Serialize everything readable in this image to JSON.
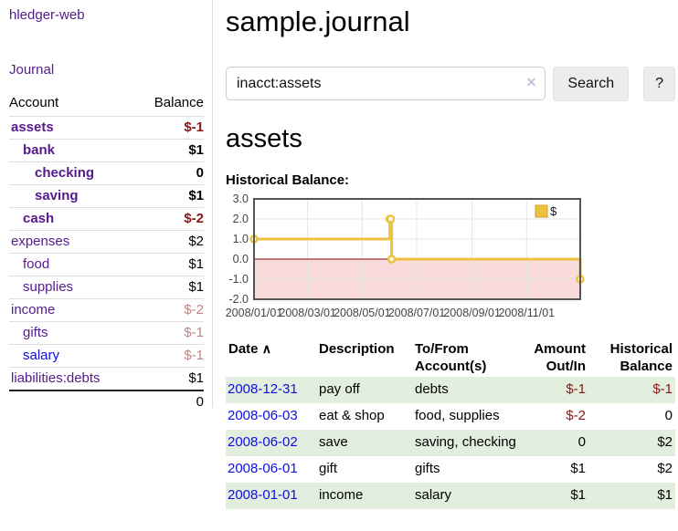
{
  "app": {
    "brand": "hledger-web"
  },
  "sidebar": {
    "nav_journal": "Journal",
    "table_headers": {
      "account": "Account",
      "balance": "Balance"
    },
    "accounts": [
      {
        "account": "assets",
        "balance": "$-1",
        "level": 1,
        "bold": true,
        "balance_class": "neg"
      },
      {
        "account": "bank",
        "balance": "$1",
        "level": 2,
        "bold": true,
        "balance_class": ""
      },
      {
        "account": "checking",
        "balance": "0",
        "level": 3,
        "bold": true,
        "balance_class": ""
      },
      {
        "account": "saving",
        "balance": "$1",
        "level": 3,
        "bold": true,
        "balance_class": ""
      },
      {
        "account": "cash",
        "balance": "$-2",
        "level": 2,
        "bold": true,
        "balance_class": "neg"
      },
      {
        "account": "expenses",
        "balance": "$2",
        "level": 1,
        "bold": false,
        "balance_class": ""
      },
      {
        "account": "food",
        "balance": "$1",
        "level": 2,
        "bold": false,
        "balance_class": ""
      },
      {
        "account": "supplies",
        "balance": "$1",
        "level": 2,
        "bold": false,
        "balance_class": ""
      },
      {
        "account": "income",
        "balance": "$-2",
        "level": 1,
        "bold": false,
        "balance_class": "negdim"
      },
      {
        "account": "gifts",
        "balance": "$-1",
        "level": 2,
        "bold": false,
        "balance_class": "negdim"
      },
      {
        "account": "salary",
        "balance": "$-1",
        "level": 2,
        "bold": false,
        "balance_class": "negdim",
        "blue": true
      },
      {
        "account": "liabilities:debts",
        "balance": "$1",
        "level": 1,
        "bold": false,
        "balance_class": ""
      }
    ],
    "total": "0"
  },
  "main": {
    "title": "sample.journal",
    "search": {
      "value": "inacct:assets",
      "clear_icon": "✕",
      "button_label": "Search",
      "help_label": "?"
    },
    "account_heading": "assets",
    "chart_label": "Historical Balance:"
  },
  "chart_data": {
    "type": "line",
    "step": true,
    "title": "Historical Balance:",
    "series": [
      {
        "name": "$",
        "color": "#EDC240",
        "points": [
          {
            "date": "2008-01-01",
            "value": 1
          },
          {
            "date": "2008-06-01",
            "value": 2
          },
          {
            "date": "2008-06-02",
            "value": 2
          },
          {
            "date": "2008-06-03",
            "value": 0
          },
          {
            "date": "2008-12-31",
            "value": -1
          }
        ]
      }
    ],
    "x_range": [
      "2008-01-01",
      "2008-12-31"
    ],
    "x_ticks": [
      "2008/01/01",
      "2008/03/01",
      "2008/05/01",
      "2008/07/01",
      "2008/09/01",
      "2008/11/01"
    ],
    "y_ticks": [
      "3.0",
      "2.0",
      "1.0",
      "0.0",
      "-1.0",
      "-2.0"
    ],
    "ylim": [
      -2,
      3
    ],
    "grid": true,
    "legend_position": "top-right",
    "legend_label": "$",
    "colors": {
      "series": "#EDC240",
      "negative_region_fill": "#fadbdb",
      "zero_line": "#8b0000",
      "grid": "#e4e4e4",
      "border": "#545454",
      "tick_text": "#444444"
    }
  },
  "register": {
    "sort_icon": "∧",
    "columns": [
      {
        "l1": "Date"
      },
      {
        "l1": "Description"
      },
      {
        "l1": "To/From",
        "l2": "Account(s)"
      },
      {
        "l1": "Amount",
        "l2": "Out/In"
      },
      {
        "l1": "Historical",
        "l2": "Balance"
      }
    ],
    "rows": [
      {
        "date": "2008-12-31",
        "description": "pay off",
        "accounts": "debts",
        "amount": "$-1",
        "amount_neg": true,
        "balance": "$-1",
        "balance_neg": true
      },
      {
        "date": "2008-06-03",
        "description": "eat & shop",
        "accounts": "food, supplies",
        "amount": "$-2",
        "amount_neg": true,
        "balance": "0",
        "balance_neg": false
      },
      {
        "date": "2008-06-02",
        "description": "save",
        "accounts": "saving, checking",
        "amount": "0",
        "amount_neg": false,
        "balance": "$2",
        "balance_neg": false
      },
      {
        "date": "2008-06-01",
        "description": "gift",
        "accounts": "gifts",
        "amount": "$1",
        "amount_neg": false,
        "balance": "$2",
        "balance_neg": false
      },
      {
        "date": "2008-01-01",
        "description": "income",
        "accounts": "salary",
        "amount": "$1",
        "amount_neg": false,
        "balance": "$1",
        "balance_neg": false
      }
    ]
  }
}
